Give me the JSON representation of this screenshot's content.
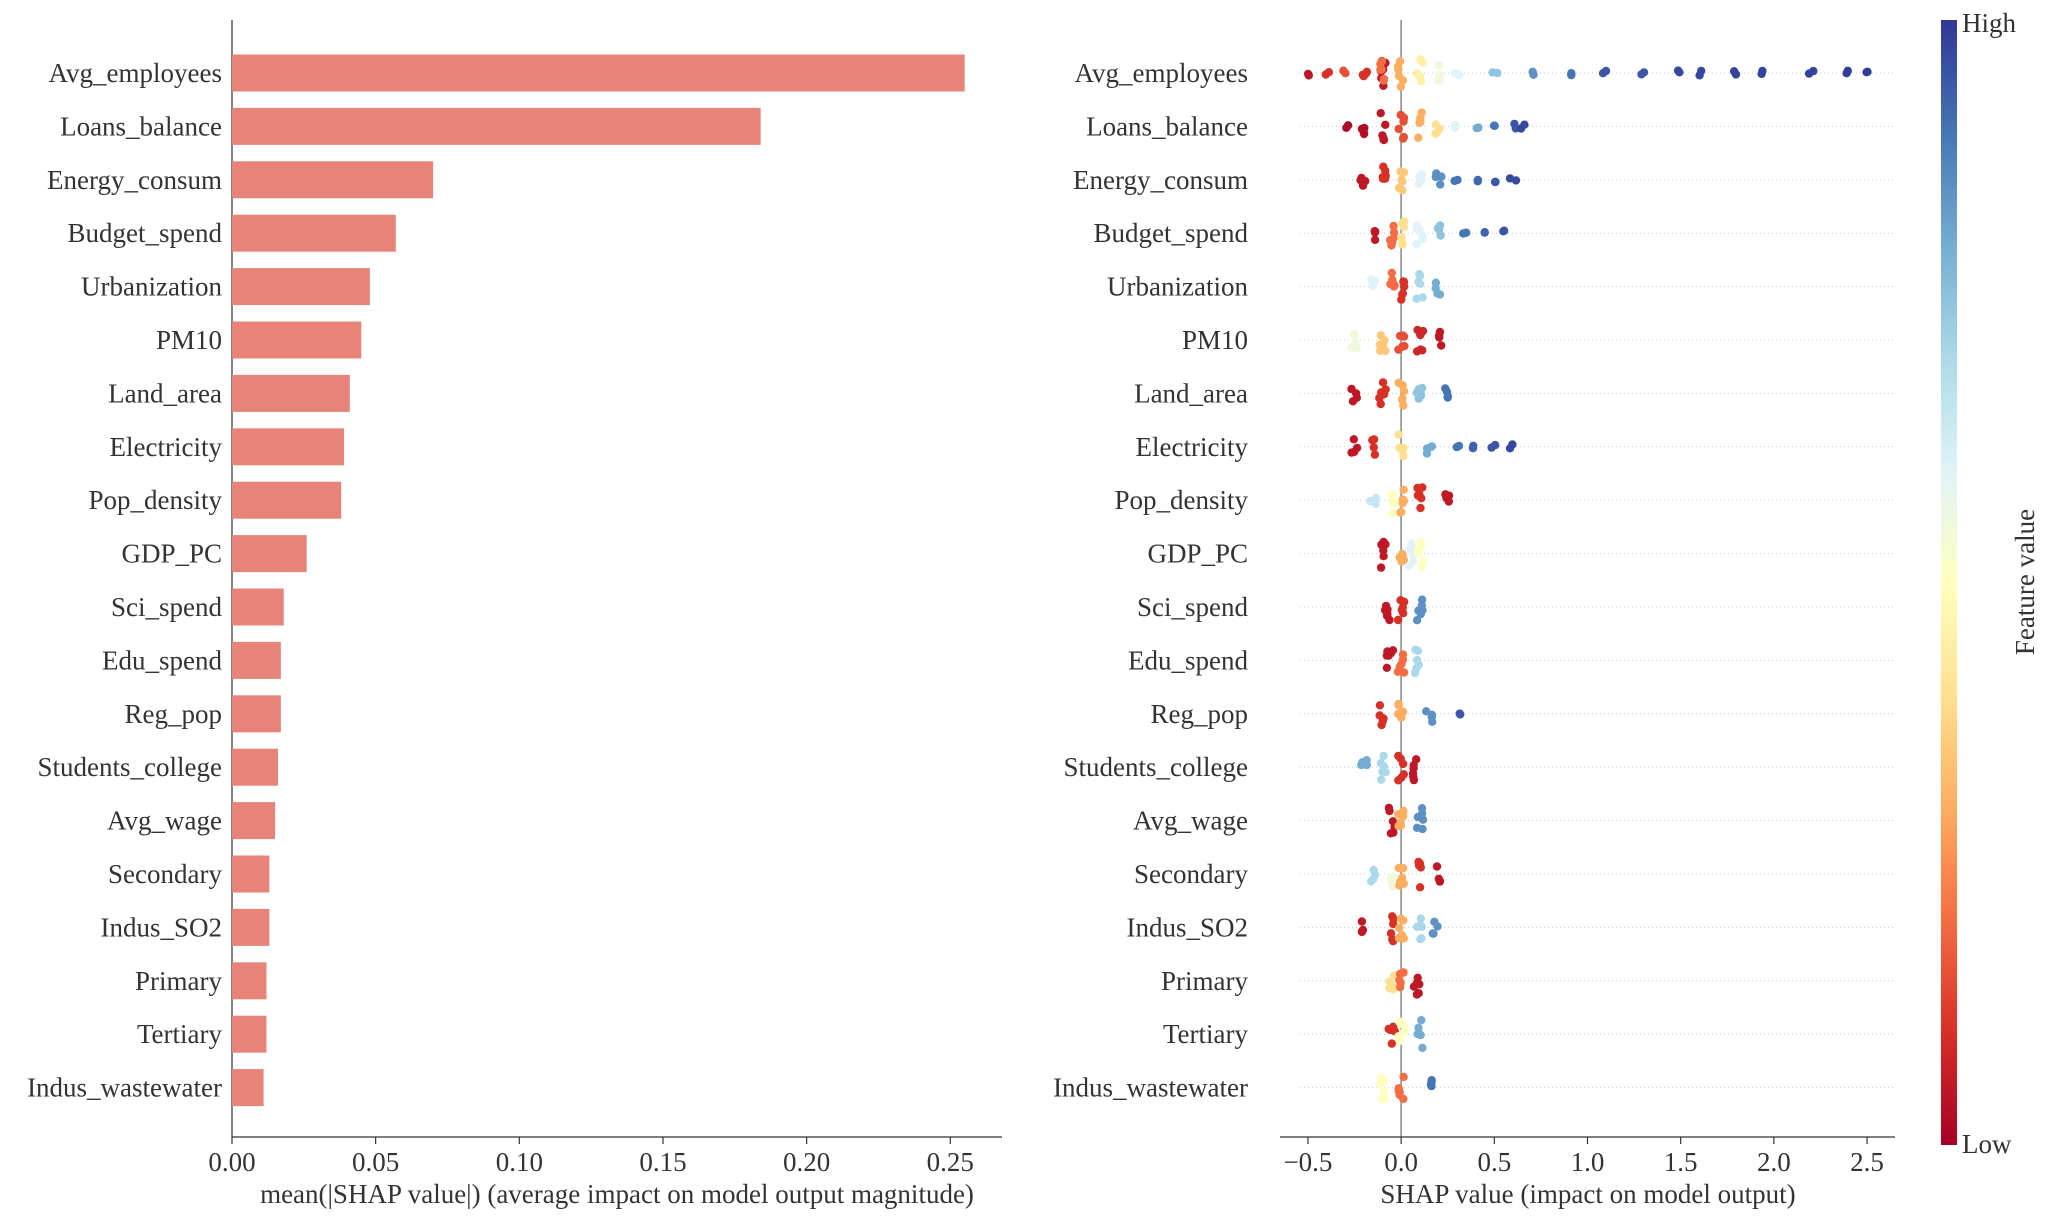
{
  "chart_data": [
    {
      "type": "bar",
      "orientation": "horizontal",
      "xlabel": "mean(|SHAP value|) (average impact on model output magnitude)",
      "xlim": [
        0,
        0.268
      ],
      "xticks": [
        "0.00",
        "0.05",
        "0.10",
        "0.15",
        "0.20",
        "0.25"
      ],
      "xtick_values": [
        0,
        0.05,
        0.1,
        0.15,
        0.2,
        0.25
      ],
      "bar_color": "#e8837a",
      "categories": [
        "Avg_employees",
        "Loans_balance",
        "Energy_consum",
        "Budget_spend",
        "Urbanization",
        "PM10",
        "Land_area",
        "Electricity",
        "Pop_density",
        "GDP_PC",
        "Sci_spend",
        "Edu_spend",
        "Reg_pop",
        "Students_college",
        "Avg_wage",
        "Secondary",
        "Indus_SO2",
        "Primary",
        "Tertiary",
        "Indus_wastewater"
      ],
      "values": [
        0.255,
        0.184,
        0.07,
        0.057,
        0.048,
        0.045,
        0.041,
        0.039,
        0.038,
        0.026,
        0.018,
        0.017,
        0.017,
        0.016,
        0.015,
        0.013,
        0.013,
        0.012,
        0.012,
        0.011
      ]
    },
    {
      "type": "scatter",
      "subtype": "beeswarm",
      "xlabel": "SHAP value (impact on model output)",
      "xlim": [
        -0.65,
        2.65
      ],
      "xticks": [
        "−0.5",
        "0.0",
        "0.5",
        "1.0",
        "1.5",
        "2.0",
        "2.5"
      ],
      "xtick_values": [
        -0.5,
        0,
        0.5,
        1.0,
        1.5,
        2.0,
        2.5
      ],
      "categories": [
        "Avg_employees",
        "Loans_balance",
        "Energy_consum",
        "Budget_spend",
        "Urbanization",
        "PM10",
        "Land_area",
        "Electricity",
        "Pop_density",
        "GDP_PC",
        "Sci_spend",
        "Edu_spend",
        "Reg_pop",
        "Students_college",
        "Avg_wage",
        "Secondary",
        "Indus_SO2",
        "Primary",
        "Tertiary",
        "Indus_wastewater"
      ],
      "colorbar": {
        "label": "Feature value",
        "high_label": "High",
        "low_label": "Low",
        "colors": [
          "#a50026",
          "#d73027",
          "#f46d43",
          "#fdae61",
          "#fee090",
          "#ffffbf",
          "#e0f3f8",
          "#abd9e9",
          "#74add1",
          "#4575b4",
          "#313695"
        ]
      },
      "series": [
        {
          "points": [
            [
              -0.5,
              0.05
            ],
            [
              -0.4,
              0.1
            ],
            [
              -0.3,
              0.15
            ],
            [
              -0.2,
              0.1
            ],
            [
              -0.1,
              0.05
            ],
            [
              -0.1,
              0.2
            ],
            [
              0,
              0.3
            ],
            [
              0.1,
              0.45
            ],
            [
              0.2,
              0.55
            ],
            [
              0.3,
              0.6
            ],
            [
              0.5,
              0.75
            ],
            [
              0.7,
              0.85
            ],
            [
              0.9,
              0.9
            ],
            [
              1.1,
              0.95
            ],
            [
              1.3,
              0.95
            ],
            [
              1.5,
              0.97
            ],
            [
              1.6,
              0.97
            ],
            [
              1.8,
              0.98
            ],
            [
              1.95,
              0.98
            ],
            [
              2.2,
              0.98
            ],
            [
              2.4,
              0.99
            ],
            [
              2.5,
              0.99
            ]
          ]
        },
        {
          "points": [
            [
              -0.3,
              0.02
            ],
            [
              -0.2,
              0.03
            ],
            [
              -0.1,
              0.05
            ],
            [
              0,
              0.15
            ],
            [
              0.1,
              0.3
            ],
            [
              0.2,
              0.4
            ],
            [
              0.3,
              0.6
            ],
            [
              0.4,
              0.8
            ],
            [
              0.5,
              0.9
            ],
            [
              0.6,
              0.95
            ],
            [
              0.65,
              0.97
            ]
          ]
        },
        {
          "points": [
            [
              -0.2,
              0.05
            ],
            [
              -0.1,
              0.1
            ],
            [
              0,
              0.35
            ],
            [
              0.1,
              0.6
            ],
            [
              0.2,
              0.85
            ],
            [
              0.3,
              0.9
            ],
            [
              0.4,
              0.92
            ],
            [
              0.5,
              0.95
            ],
            [
              0.6,
              0.97
            ]
          ]
        },
        {
          "points": [
            [
              -0.15,
              0.05
            ],
            [
              -0.05,
              0.2
            ],
            [
              0,
              0.4
            ],
            [
              0.1,
              0.6
            ],
            [
              0.2,
              0.75
            ],
            [
              0.35,
              0.9
            ],
            [
              0.45,
              0.93
            ],
            [
              0.55,
              0.95
            ]
          ]
        },
        {
          "points": [
            [
              -0.15,
              0.6
            ],
            [
              -0.05,
              0.2
            ],
            [
              0,
              0.1
            ],
            [
              0.1,
              0.7
            ],
            [
              0.2,
              0.8
            ]
          ]
        },
        {
          "points": [
            [
              -0.25,
              0.55
            ],
            [
              -0.1,
              0.35
            ],
            [
              0,
              0.15
            ],
            [
              0.1,
              0.08
            ],
            [
              0.2,
              0.05
            ]
          ]
        },
        {
          "points": [
            [
              -0.25,
              0.05
            ],
            [
              -0.1,
              0.1
            ],
            [
              0,
              0.3
            ],
            [
              0.1,
              0.75
            ],
            [
              0.25,
              0.9
            ]
          ]
        },
        {
          "points": [
            [
              -0.25,
              0.05
            ],
            [
              -0.15,
              0.1
            ],
            [
              0,
              0.4
            ],
            [
              0.15,
              0.8
            ],
            [
              0.3,
              0.9
            ],
            [
              0.4,
              0.93
            ],
            [
              0.5,
              0.95
            ],
            [
              0.6,
              0.97
            ]
          ]
        },
        {
          "points": [
            [
              -0.15,
              0.65
            ],
            [
              -0.05,
              0.5
            ],
            [
              0,
              0.3
            ],
            [
              0.1,
              0.1
            ],
            [
              0.25,
              0.05
            ]
          ]
        },
        {
          "points": [
            [
              -0.1,
              0.05
            ],
            [
              0,
              0.3
            ],
            [
              0.05,
              0.6
            ],
            [
              0.1,
              0.5
            ]
          ]
        },
        {
          "points": [
            [
              -0.08,
              0.05
            ],
            [
              0,
              0.1
            ],
            [
              0.1,
              0.85
            ]
          ]
        },
        {
          "points": [
            [
              -0.06,
              0.05
            ],
            [
              0,
              0.2
            ],
            [
              0.08,
              0.7
            ]
          ]
        },
        {
          "points": [
            [
              -0.1,
              0.1
            ],
            [
              0,
              0.3
            ],
            [
              0.15,
              0.85
            ],
            [
              0.3,
              0.95
            ]
          ]
        },
        {
          "points": [
            [
              -0.2,
              0.8
            ],
            [
              -0.1,
              0.7
            ],
            [
              0,
              0.1
            ],
            [
              0.07,
              0.05
            ]
          ]
        },
        {
          "points": [
            [
              -0.05,
              0.05
            ],
            [
              0,
              0.3
            ],
            [
              0.1,
              0.85
            ]
          ]
        },
        {
          "points": [
            [
              -0.15,
              0.7
            ],
            [
              -0.05,
              0.55
            ],
            [
              0,
              0.3
            ],
            [
              0.1,
              0.1
            ],
            [
              0.2,
              0.05
            ]
          ]
        },
        {
          "points": [
            [
              -0.2,
              0.05
            ],
            [
              -0.05,
              0.1
            ],
            [
              0,
              0.3
            ],
            [
              0.1,
              0.7
            ],
            [
              0.18,
              0.85
            ]
          ]
        },
        {
          "points": [
            [
              -0.05,
              0.4
            ],
            [
              0,
              0.2
            ],
            [
              0.08,
              0.05
            ]
          ]
        },
        {
          "points": [
            [
              -0.05,
              0.1
            ],
            [
              0,
              0.5
            ],
            [
              0.1,
              0.8
            ]
          ]
        },
        {
          "points": [
            [
              -0.1,
              0.5
            ],
            [
              0,
              0.2
            ],
            [
              0.15,
              0.9
            ]
          ]
        }
      ]
    }
  ]
}
